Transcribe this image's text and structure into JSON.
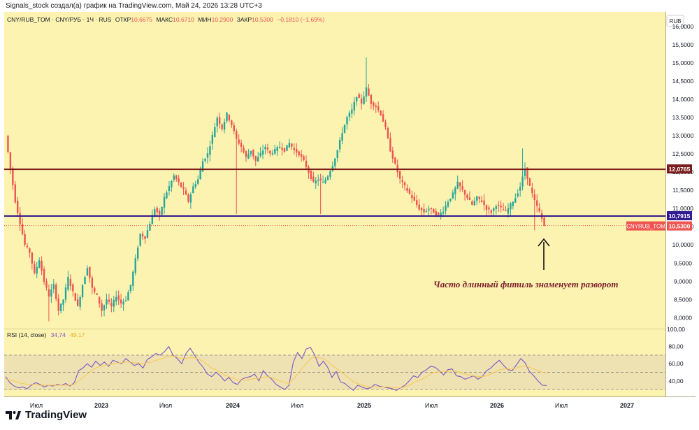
{
  "caption": "Signals_stock создал(а) график на TradingView.com, Май 24, 2026 13:28 UTC+3",
  "brand": "TradingView",
  "header": {
    "symbol": "CNY/RUB_TOM · CNY/РУБ · 1Ч · RUS",
    "o_label": "ОТКР",
    "o_value": "10,6675",
    "h_label": "МАКС",
    "h_value": "10,6710",
    "l_label": "МИН",
    "l_value": "10,2900",
    "c_label": "ЗАКР",
    "c_value": "10,5300",
    "change": "−0,1810 (−1,69%)"
  },
  "currency": "RUB",
  "annotation": "Часто длинный фитиль знаменует разворот",
  "colors": {
    "background": "#fcf3b0",
    "up": "#26a69a",
    "down": "#ef5350",
    "level_top": "#7b1d1d",
    "level_bottom": "#311b92",
    "rsi": "#7e57c2",
    "rsi_ma": "#f9c74f",
    "arrow": "#111111"
  },
  "chart_data": [
    {
      "type": "candlestick",
      "title": "CNY/RUB_TOM",
      "x_ticks": [
        "Июл",
        "2023",
        "Июл",
        "2024",
        "Июл",
        "2025",
        "Июл",
        "2026",
        "Июл",
        "2027"
      ],
      "y_ticks": [
        "16,0000",
        "15,5000",
        "15,0000",
        "14,5000",
        "14,0000",
        "13,5000",
        "13,0000",
        "12,5000",
        "12,0000",
        "11,5000",
        "11,0000",
        "10,5000",
        "10,0000",
        "9,5000",
        "9,0000",
        "8,5000",
        "8,0000"
      ],
      "y_tick_values": [
        16,
        15.5,
        15,
        14.5,
        14,
        13.5,
        13,
        12.5,
        12,
        11.5,
        11,
        10.5,
        10,
        9.5,
        9,
        8.5,
        8
      ],
      "ylim": [
        7.7,
        16.4
      ],
      "levels": [
        {
          "value": 12.0765,
          "label": "12,0765"
        },
        {
          "value": 10.7915,
          "label": "10,7915"
        }
      ],
      "last_price": {
        "value": 10.53,
        "label": "10,5300",
        "tag": "CNYRUB_TOM"
      },
      "price_path": [
        [
          0,
          13.0
        ],
        [
          2,
          12.1
        ],
        [
          4,
          11.2
        ],
        [
          6,
          10.6
        ],
        [
          8,
          10.0
        ],
        [
          10,
          9.8
        ],
        [
          12,
          9.2
        ],
        [
          14,
          9.6
        ],
        [
          16,
          9.0
        ],
        [
          18,
          8.6
        ],
        [
          20,
          8.9
        ],
        [
          22,
          8.2
        ],
        [
          24,
          8.5
        ],
        [
          26,
          9.1
        ],
        [
          28,
          8.7
        ],
        [
          30,
          8.3
        ],
        [
          32,
          8.9
        ],
        [
          34,
          9.4
        ],
        [
          36,
          8.8
        ],
        [
          38,
          8.6
        ],
        [
          40,
          8.2
        ],
        [
          42,
          8.5
        ],
        [
          44,
          8.3
        ],
        [
          46,
          8.6
        ],
        [
          48,
          8.4
        ],
        [
          50,
          8.5
        ],
        [
          52,
          8.9
        ],
        [
          54,
          9.6
        ],
        [
          56,
          10.3
        ],
        [
          58,
          10.2
        ],
        [
          60,
          10.6
        ],
        [
          62,
          11.0
        ],
        [
          64,
          10.8
        ],
        [
          66,
          11.3
        ],
        [
          68,
          11.6
        ],
        [
          70,
          11.9
        ],
        [
          72,
          11.7
        ],
        [
          74,
          11.5
        ],
        [
          76,
          11.2
        ],
        [
          78,
          11.6
        ],
        [
          80,
          11.8
        ],
        [
          82,
          12.3
        ],
        [
          84,
          12.5
        ],
        [
          86,
          13.0
        ],
        [
          88,
          13.5
        ],
        [
          90,
          13.2
        ],
        [
          92,
          13.6
        ],
        [
          94,
          13.3
        ],
        [
          96,
          12.9
        ],
        [
          98,
          12.7
        ],
        [
          100,
          12.4
        ],
        [
          102,
          12.6
        ],
        [
          104,
          12.3
        ],
        [
          106,
          12.5
        ],
        [
          108,
          12.7
        ],
        [
          110,
          12.5
        ],
        [
          112,
          12.6
        ],
        [
          114,
          12.7
        ],
        [
          116,
          12.6
        ],
        [
          118,
          12.8
        ],
        [
          120,
          12.6
        ],
        [
          122,
          12.5
        ],
        [
          124,
          12.3
        ],
        [
          126,
          12.0
        ],
        [
          128,
          11.7
        ],
        [
          130,
          11.8
        ],
        [
          132,
          11.7
        ],
        [
          134,
          11.9
        ],
        [
          136,
          12.2
        ],
        [
          138,
          12.6
        ],
        [
          140,
          13.1
        ],
        [
          142,
          13.5
        ],
        [
          144,
          13.7
        ],
        [
          146,
          14.1
        ],
        [
          148,
          13.9
        ],
        [
          150,
          14.3
        ],
        [
          152,
          13.9
        ],
        [
          154,
          13.8
        ],
        [
          156,
          13.6
        ],
        [
          158,
          13.2
        ],
        [
          160,
          12.6
        ],
        [
          162,
          12.2
        ],
        [
          164,
          11.8
        ],
        [
          166,
          11.6
        ],
        [
          168,
          11.4
        ],
        [
          170,
          11.2
        ],
        [
          172,
          11.0
        ],
        [
          174,
          10.9
        ],
        [
          176,
          11.0
        ],
        [
          178,
          10.9
        ],
        [
          180,
          10.8
        ],
        [
          182,
          10.95
        ],
        [
          184,
          11.2
        ],
        [
          186,
          11.4
        ],
        [
          188,
          11.7
        ],
        [
          190,
          11.5
        ],
        [
          192,
          11.3
        ],
        [
          194,
          11.1
        ],
        [
          196,
          11.3
        ],
        [
          198,
          11.2
        ],
        [
          200,
          11.0
        ],
        [
          202,
          10.9
        ],
        [
          204,
          11.1
        ],
        [
          206,
          11.0
        ],
        [
          208,
          10.9
        ],
        [
          210,
          11.1
        ],
        [
          212,
          11.3
        ],
        [
          214,
          11.6
        ],
        [
          216,
          12.1
        ],
        [
          218,
          11.6
        ],
        [
          220,
          11.2
        ],
        [
          222,
          10.9
        ],
        [
          224,
          10.53
        ]
      ],
      "wicks": [
        {
          "i": 150,
          "high": 15.15
        },
        {
          "i": 215,
          "high": 12.65
        },
        {
          "i": 96,
          "low": 10.85
        },
        {
          "i": 131,
          "low": 10.85
        },
        {
          "i": 18,
          "low": 7.9
        },
        {
          "i": 220,
          "low": 10.4
        }
      ]
    },
    {
      "type": "line",
      "title": "RSI (14, close)",
      "legend_values": [
        "34,74",
        "49,17"
      ],
      "y_ticks": [
        "100,00",
        "80,00",
        "60,00",
        "40,00"
      ],
      "y_tick_values": [
        100,
        80,
        60,
        40
      ],
      "ylim": [
        22,
        100
      ],
      "bands": [
        70,
        50,
        30
      ],
      "series": [
        {
          "values": [
            45,
            38,
            34,
            32,
            33,
            31,
            35,
            38,
            36,
            33,
            35,
            34,
            36,
            35,
            37,
            34,
            38,
            52,
            55,
            60,
            56,
            63,
            58,
            62,
            57,
            64,
            62,
            60,
            66,
            62,
            58,
            60,
            55,
            65,
            68,
            72,
            70,
            74,
            80,
            70,
            66,
            60,
            72,
            78,
            70,
            62,
            56,
            48,
            45,
            50,
            46,
            40,
            44,
            38,
            36,
            42,
            44,
            45,
            48,
            40,
            52,
            46,
            42,
            36,
            33,
            30,
            35,
            62,
            73,
            66,
            77,
            79,
            70,
            57,
            63,
            56,
            44,
            51,
            39,
            37,
            33,
            29,
            35,
            33,
            31,
            32,
            36,
            34,
            33,
            32,
            31,
            29,
            32,
            35,
            40,
            46,
            44,
            50,
            53,
            57,
            56,
            52,
            47,
            53,
            54,
            46,
            45,
            42,
            44,
            46,
            42,
            45,
            52,
            55,
            60,
            64,
            58,
            53,
            52,
            59,
            66,
            61,
            51,
            46,
            40,
            35,
            34.74
          ]
        },
        {
          "values": [
            42,
            41,
            40,
            38,
            37,
            36,
            36,
            36,
            35,
            35,
            35,
            35,
            35,
            35,
            35,
            35,
            36,
            40,
            44,
            48,
            52,
            55,
            57,
            58,
            59,
            60,
            61,
            61,
            62,
            62,
            61,
            61,
            60,
            61,
            62,
            64,
            65,
            67,
            69,
            69,
            68,
            66,
            66,
            67,
            67,
            65,
            63,
            59,
            55,
            53,
            50,
            47,
            45,
            43,
            41,
            41,
            41,
            42,
            43,
            43,
            44,
            45,
            44,
            42,
            40,
            38,
            37,
            42,
            48,
            54,
            60,
            66,
            68,
            67,
            66,
            63,
            58,
            55,
            51,
            47,
            43,
            39,
            37,
            35,
            34,
            33,
            33,
            33,
            33,
            33,
            32,
            32,
            32,
            33,
            35,
            38,
            40,
            42,
            45,
            48,
            50,
            51,
            51,
            51,
            52,
            51,
            50,
            48,
            47,
            46,
            45,
            45,
            46,
            48,
            50,
            53,
            54,
            54,
            54,
            55,
            57,
            57,
            56,
            54,
            52,
            50,
            49.17
          ]
        }
      ]
    }
  ]
}
